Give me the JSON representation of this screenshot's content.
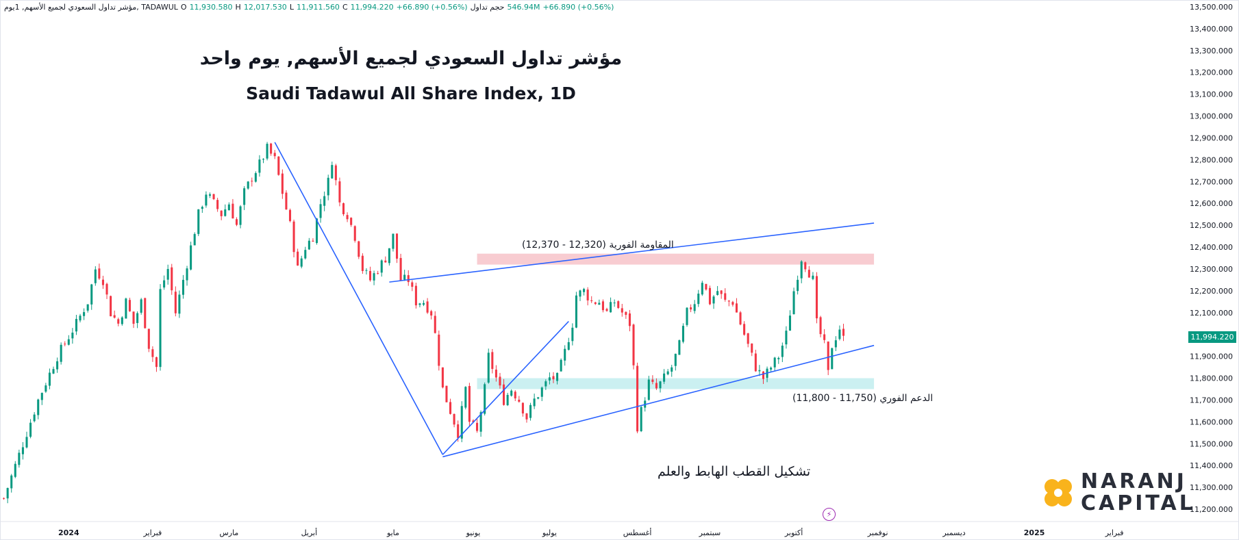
{
  "header": {
    "symbol": "مؤشر تداول السعودي لجميع الأسهم, 1يوم, TADAWUL",
    "o_label": "O",
    "o_value": "11,930.580",
    "h_label": "H",
    "h_value": "12,017.530",
    "l_label": "L",
    "l_value": "11,911.560",
    "c_label": "C",
    "c_value": "11,994.220",
    "change": "+66.890 (+0.56%)",
    "volume_label": "حجم تداول",
    "volume_value": "546.94M",
    "change2": "+66.890 (+0.56%)"
  },
  "titles": {
    "arabic": "مؤشر تداول السعودي لجميع الأسهم, يوم واحد",
    "english": "Saudi Tadawul All Share Index, 1D"
  },
  "annotations": {
    "resistance": "المقاومة الفورية (12,320 - 12,370)",
    "support": "الدعم الفوري (11,750 - 11,800)",
    "pattern": "تشكيل القطب الهابط والعلم"
  },
  "last_price": "11,994.220",
  "logo": {
    "line1": "NARANJ",
    "line2": "CAPITAL"
  },
  "colors": {
    "up": "#089981",
    "down": "#f23645",
    "trendline": "#2962ff",
    "resistance_zone": "#f7c6cc",
    "support_zone": "#c5eef0",
    "logo_orange": "#f9b31c"
  },
  "chart_data": {
    "type": "candlestick",
    "ylim": [
      11150,
      13500
    ],
    "y_ticks": [
      "11,200.000",
      "11,300.000",
      "11,400.000",
      "11,500.000",
      "11,600.000",
      "11,700.000",
      "11,800.000",
      "11,900.000",
      "12,000.000",
      "12,100.000",
      "12,200.000",
      "12,300.000",
      "12,400.000",
      "12,500.000",
      "12,600.000",
      "12,700.000",
      "12,800.000",
      "12,900.000",
      "13,000.000",
      "13,100.000",
      "13,200.000",
      "13,300.000",
      "13,400.000",
      "13,500.000"
    ],
    "x_ticks": [
      "2024",
      "فبراير",
      "مارس",
      "أبريل",
      "مايو",
      "يونيو",
      "يوليو",
      "أغسطس",
      "سبتمبر",
      "أكتوبر",
      "نوفمبر",
      "ديسمبر",
      "2025",
      "فبراير"
    ],
    "x_tick_pos": [
      0,
      22,
      42,
      63,
      85,
      106,
      126,
      149,
      168,
      190,
      212,
      232,
      253,
      274
    ],
    "x_range": [
      -18,
      293
    ],
    "close_path": [
      [
        -17,
        11250
      ],
      [
        -13,
        11450
      ],
      [
        -8,
        11700
      ],
      [
        -3,
        11900
      ],
      [
        2,
        12050
      ],
      [
        5,
        12150
      ],
      [
        7,
        12300
      ],
      [
        9,
        12250
      ],
      [
        11,
        12100
      ],
      [
        13,
        12050
      ],
      [
        15,
        12150
      ],
      [
        17,
        12050
      ],
      [
        19,
        12150
      ],
      [
        21,
        11950
      ],
      [
        23,
        11850
      ],
      [
        24,
        12200
      ],
      [
        26,
        12300
      ],
      [
        28,
        12100
      ],
      [
        30,
        12250
      ],
      [
        32,
        12400
      ],
      [
        34,
        12550
      ],
      [
        36,
        12650
      ],
      [
        38,
        12600
      ],
      [
        40,
        12550
      ],
      [
        42,
        12600
      ],
      [
        44,
        12500
      ],
      [
        46,
        12650
      ],
      [
        48,
        12720
      ],
      [
        50,
        12780
      ],
      [
        52,
        12850
      ],
      [
        54,
        12800
      ],
      [
        56,
        12650
      ],
      [
        58,
        12500
      ],
      [
        60,
        12300
      ],
      [
        62,
        12400
      ],
      [
        64,
        12450
      ],
      [
        66,
        12600
      ],
      [
        68,
        12700
      ],
      [
        69,
        12800
      ],
      [
        71,
        12600
      ],
      [
        73,
        12550
      ],
      [
        75,
        12450
      ],
      [
        77,
        12300
      ],
      [
        79,
        12250
      ],
      [
        81,
        12300
      ],
      [
        83,
        12350
      ],
      [
        85,
        12450
      ],
      [
        87,
        12250
      ],
      [
        89,
        12250
      ],
      [
        91,
        12150
      ],
      [
        93,
        12150
      ],
      [
        95,
        12100
      ],
      [
        96,
        12000
      ],
      [
        98,
        11750
      ],
      [
        100,
        11650
      ],
      [
        102,
        11550
      ],
      [
        104,
        11750
      ],
      [
        105,
        11600
      ],
      [
        107,
        11550
      ],
      [
        109,
        11750
      ],
      [
        110,
        11900
      ],
      [
        112,
        11800
      ],
      [
        114,
        11700
      ],
      [
        116,
        11750
      ],
      [
        118,
        11700
      ],
      [
        120,
        11620
      ],
      [
        122,
        11700
      ],
      [
        124,
        11750
      ],
      [
        126,
        11800
      ],
      [
        128,
        11800
      ],
      [
        130,
        11920
      ],
      [
        132,
        12050
      ],
      [
        133,
        12180
      ],
      [
        135,
        12200
      ],
      [
        137,
        12150
      ],
      [
        139,
        12150
      ],
      [
        141,
        12100
      ],
      [
        143,
        12150
      ],
      [
        145,
        12100
      ],
      [
        147,
        12050
      ],
      [
        148,
        11850
      ],
      [
        149,
        11580
      ],
      [
        150,
        11650
      ],
      [
        152,
        11780
      ],
      [
        154,
        11750
      ],
      [
        156,
        11800
      ],
      [
        158,
        11850
      ],
      [
        160,
        11950
      ],
      [
        162,
        12100
      ],
      [
        164,
        12150
      ],
      [
        166,
        12250
      ],
      [
        168,
        12150
      ],
      [
        170,
        12200
      ],
      [
        172,
        12150
      ],
      [
        174,
        12150
      ],
      [
        176,
        12050
      ],
      [
        178,
        11950
      ],
      [
        180,
        11850
      ],
      [
        182,
        11800
      ],
      [
        184,
        11850
      ],
      [
        186,
        11900
      ],
      [
        188,
        12000
      ],
      [
        190,
        12200
      ],
      [
        192,
        12350
      ],
      [
        193,
        12320
      ],
      [
        195,
        12250
      ],
      [
        196,
        12050
      ],
      [
        198,
        11950
      ],
      [
        199,
        11820
      ],
      [
        200,
        11950
      ],
      [
        202,
        12030
      ],
      [
        203,
        11994
      ]
    ]
  }
}
